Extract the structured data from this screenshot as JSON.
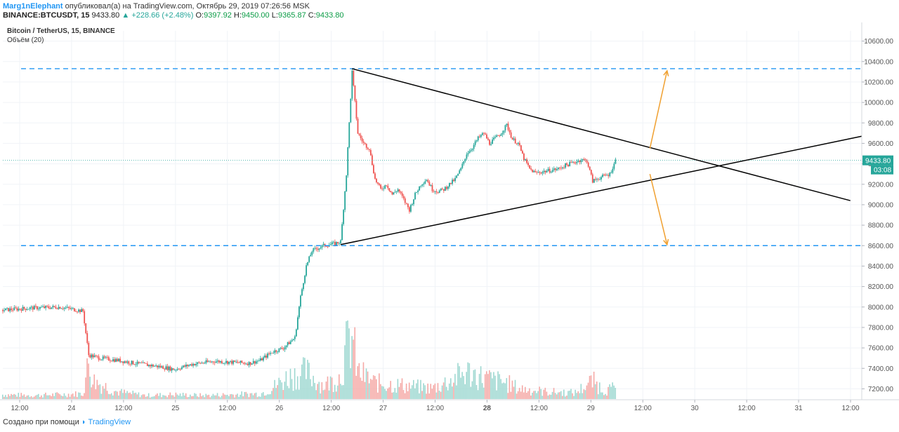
{
  "header": {
    "author": "Marg1nElephant",
    "published_text": "опубликовал(а) на TradingView.com, Октябрь 29, 2019 07:26:56 MSK",
    "ticker": "BINANCE:BTCUSDT, 15",
    "last": "9433.80",
    "change": "+228.66 (+2.48%)",
    "open": "9397.92",
    "high": "9450.00",
    "low": "9365.87",
    "close": "9433.80"
  },
  "legend": {
    "main_series": "Bitcoin / TetherUS, 15, BINANCE",
    "volume": "Объём (20)"
  },
  "footer": {
    "created_with": "Создано при помощи",
    "brand": "TradingView"
  },
  "colors": {
    "up": "#26a69a",
    "down": "#ef5350",
    "vol_up": "#9ed8d1",
    "vol_down": "#f5a9a6",
    "level_line": "#2196f3",
    "trend_line": "#000000",
    "arrow": "#f0a030",
    "price_tag": "#26a69a"
  },
  "chart_data": {
    "type": "candlestick",
    "y_axis": {
      "min": 7100,
      "max": 10700,
      "ticks": [
        7200,
        7400,
        7600,
        7800,
        8000,
        8200,
        8400,
        8600,
        8800,
        9000,
        9200,
        9400,
        9600,
        9800,
        10000,
        10200,
        10400,
        10600
      ]
    },
    "x_ticks": [
      "12:00",
      "24",
      "12:00",
      "25",
      "12:00",
      "26",
      "12:00",
      "27",
      "12:00",
      "28",
      "12:00",
      "29",
      "12:00",
      "30",
      "12:00",
      "31",
      "12:00"
    ],
    "price_path": [
      [
        0,
        7970
      ],
      [
        5,
        7990
      ],
      [
        10,
        8000
      ],
      [
        14,
        7960
      ],
      [
        15,
        7530
      ],
      [
        17,
        7500
      ],
      [
        20,
        7480
      ],
      [
        23,
        7450
      ],
      [
        27,
        7420
      ],
      [
        30,
        7390
      ],
      [
        33,
        7440
      ],
      [
        37,
        7470
      ],
      [
        40,
        7460
      ],
      [
        43,
        7450
      ],
      [
        45,
        7480
      ],
      [
        47,
        7560
      ],
      [
        49,
        7600
      ],
      [
        51,
        7700
      ],
      [
        52,
        8100
      ],
      [
        53,
        8400
      ],
      [
        54,
        8550
      ],
      [
        56,
        8600
      ],
      [
        58,
        8620
      ],
      [
        59,
        8640
      ],
      [
        60,
        9300
      ],
      [
        61,
        10300
      ],
      [
        62,
        9700
      ],
      [
        63,
        9600
      ],
      [
        64,
        9550
      ],
      [
        65,
        9250
      ],
      [
        66,
        9150
      ],
      [
        67,
        9200
      ],
      [
        68,
        9100
      ],
      [
        69,
        9150
      ],
      [
        70,
        9050
      ],
      [
        71,
        8950
      ],
      [
        72,
        9100
      ],
      [
        73,
        9200
      ],
      [
        74,
        9250
      ],
      [
        75,
        9150
      ],
      [
        76,
        9130
      ],
      [
        77,
        9150
      ],
      [
        78,
        9200
      ],
      [
        79,
        9250
      ],
      [
        80,
        9350
      ],
      [
        81,
        9500
      ],
      [
        82,
        9560
      ],
      [
        83,
        9650
      ],
      [
        84,
        9700
      ],
      [
        85,
        9600
      ],
      [
        86,
        9650
      ],
      [
        87,
        9700
      ],
      [
        88,
        9780
      ],
      [
        89,
        9640
      ],
      [
        90,
        9600
      ],
      [
        91,
        9450
      ],
      [
        92,
        9350
      ],
      [
        93,
        9310
      ],
      [
        94,
        9320
      ],
      [
        95,
        9330
      ],
      [
        96,
        9340
      ],
      [
        97,
        9350
      ],
      [
        98,
        9380
      ],
      [
        99,
        9400
      ],
      [
        100,
        9420
      ],
      [
        101,
        9440
      ],
      [
        102,
        9430
      ],
      [
        103,
        9230
      ],
      [
        104,
        9260
      ],
      [
        105,
        9280
      ],
      [
        106,
        9300
      ],
      [
        107,
        9433
      ]
    ],
    "volume_path": [
      [
        0,
        5
      ],
      [
        5,
        4
      ],
      [
        10,
        5
      ],
      [
        14,
        6
      ],
      [
        15,
        40
      ],
      [
        16,
        20
      ],
      [
        20,
        8
      ],
      [
        25,
        4
      ],
      [
        30,
        5
      ],
      [
        35,
        4
      ],
      [
        40,
        5
      ],
      [
        45,
        6
      ],
      [
        47,
        12
      ],
      [
        50,
        25
      ],
      [
        53,
        30
      ],
      [
        56,
        15
      ],
      [
        59,
        25
      ],
      [
        60,
        55
      ],
      [
        61,
        70
      ],
      [
        62,
        30
      ],
      [
        65,
        18
      ],
      [
        70,
        15
      ],
      [
        75,
        12
      ],
      [
        78,
        20
      ],
      [
        81,
        30
      ],
      [
        85,
        22
      ],
      [
        88,
        18
      ],
      [
        90,
        12
      ],
      [
        95,
        8
      ],
      [
        100,
        7
      ],
      [
        103,
        20
      ],
      [
        105,
        10
      ],
      [
        107,
        12
      ]
    ],
    "x_domain": [
      0,
      150
    ],
    "current_price": "9433.80",
    "countdown": "03:08",
    "horizontal_levels": [
      10330,
      8600
    ],
    "trendlines": [
      {
        "from": [
          61,
          10330
        ],
        "to": [
          148,
          9040
        ]
      },
      {
        "from": [
          59,
          8610
        ],
        "to": [
          150,
          9670
        ]
      }
    ],
    "arrows": [
      {
        "from": [
          113,
          9550
        ],
        "to": [
          116,
          10310
        ]
      },
      {
        "from": [
          113,
          9300
        ],
        "to": [
          116,
          8610
        ]
      }
    ]
  }
}
